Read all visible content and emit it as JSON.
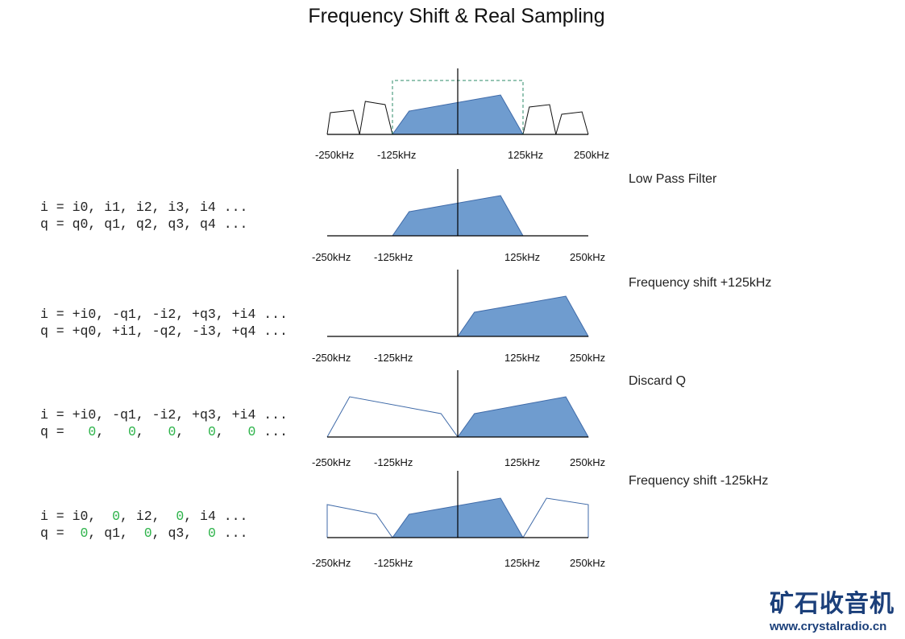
{
  "title": "Frequency Shift & Real Sampling",
  "colors": {
    "fill": "#6f9ccf",
    "stroke": "#3f6aa8",
    "outline": "#3f6aa8",
    "axis": "#000000",
    "dashed": "#2e8b6a",
    "zero": "#2db34a",
    "logo": "#1b3f7a"
  },
  "tick_labels": [
    "-250kHz",
    "-125kHz",
    "125kHz",
    "250kHz"
  ],
  "panels": [
    {
      "side_label": "",
      "code": [],
      "filled": [
        [
          [
            -125,
            0
          ],
          [
            -93,
            0.58
          ],
          [
            82,
            0.98
          ],
          [
            125,
            0
          ]
        ]
      ],
      "outlines": [
        [
          [
            -250,
            0
          ],
          [
            -244,
            0.54
          ],
          [
            -200,
            0.6
          ],
          [
            -188,
            0
          ]
        ],
        [
          [
            -188,
            0
          ],
          [
            -177,
            0.82
          ],
          [
            -139,
            0.74
          ],
          [
            -125,
            0
          ]
        ],
        [
          [
            125,
            0
          ],
          [
            137,
            0.68
          ],
          [
            176,
            0.74
          ],
          [
            188,
            0
          ]
        ],
        [
          [
            188,
            0
          ],
          [
            199,
            0.5
          ],
          [
            238,
            0.56
          ],
          [
            250,
            0
          ]
        ]
      ],
      "outline_style": "black",
      "filter_box": {
        "from_khz": -125,
        "to_khz": 125,
        "level": 1.34
      }
    },
    {
      "side_label": "Low Pass Filter",
      "code": [
        [
          {
            "t": "i = i0, i1, i2, i3, i4 ..."
          }
        ],
        [
          {
            "t": "q = q0, q1, q2, q3, q4 ..."
          }
        ]
      ],
      "filled": [
        [
          [
            -125,
            0
          ],
          [
            -93,
            0.6
          ],
          [
            82,
            1.0
          ],
          [
            125,
            0
          ]
        ]
      ],
      "outlines": []
    },
    {
      "side_label": "Frequency shift +125kHz",
      "code": [
        [
          {
            "t": "i = +i0, -q1, -i2, +q3, +i4 ..."
          }
        ],
        [
          {
            "t": "q = +q0, +i1, -q2, -i3, +q4 ..."
          }
        ]
      ],
      "filled": [
        [
          [
            0,
            0
          ],
          [
            32,
            0.6
          ],
          [
            207,
            1.0
          ],
          [
            250,
            0
          ]
        ]
      ],
      "outlines": []
    },
    {
      "side_label": "Discard Q",
      "code": [
        [
          {
            "t": "i = +i0, -q1, -i2, +q3, +i4 ..."
          }
        ],
        [
          {
            "t": "q =   "
          },
          {
            "t": "0",
            "z": true
          },
          {
            "t": ",   "
          },
          {
            "t": "0",
            "z": true
          },
          {
            "t": ",   "
          },
          {
            "t": "0",
            "z": true
          },
          {
            "t": ",   "
          },
          {
            "t": "0",
            "z": true
          },
          {
            "t": ",   "
          },
          {
            "t": "0",
            "z": true
          },
          {
            "t": " ..."
          }
        ]
      ],
      "filled": [
        [
          [
            0,
            0
          ],
          [
            32,
            0.58
          ],
          [
            207,
            1.0
          ],
          [
            250,
            0
          ]
        ]
      ],
      "outlines": [
        [
          [
            -250,
            0
          ],
          [
            -207,
            1.0
          ],
          [
            -32,
            0.58
          ],
          [
            0,
            0
          ]
        ]
      ]
    },
    {
      "side_label": "Frequency shift -125kHz",
      "code": [
        [
          {
            "t": "i = i0,  "
          },
          {
            "t": "0",
            "z": true
          },
          {
            "t": ", i2,  "
          },
          {
            "t": "0",
            "z": true
          },
          {
            "t": ", i4 ..."
          }
        ],
        [
          {
            "t": "q =  "
          },
          {
            "t": "0",
            "z": true
          },
          {
            "t": ", q1,  "
          },
          {
            "t": "0",
            "z": true
          },
          {
            "t": ", q3,  "
          },
          {
            "t": "0",
            "z": true
          },
          {
            "t": " ..."
          }
        ]
      ],
      "filled": [
        [
          [
            -125,
            0
          ],
          [
            -93,
            0.58
          ],
          [
            82,
            0.98
          ],
          [
            125,
            0
          ]
        ]
      ],
      "outlines": [
        [
          [
            -250,
            0
          ],
          [
            -250,
            0.82
          ],
          [
            -156,
            0.58
          ],
          [
            -125,
            0
          ]
        ],
        [
          [
            125,
            0
          ],
          [
            170,
            0.98
          ],
          [
            250,
            0.82
          ],
          [
            250,
            0
          ]
        ]
      ]
    }
  ],
  "logo": {
    "cn": "矿石收音机",
    "url": "www.crystalradio.cn"
  }
}
